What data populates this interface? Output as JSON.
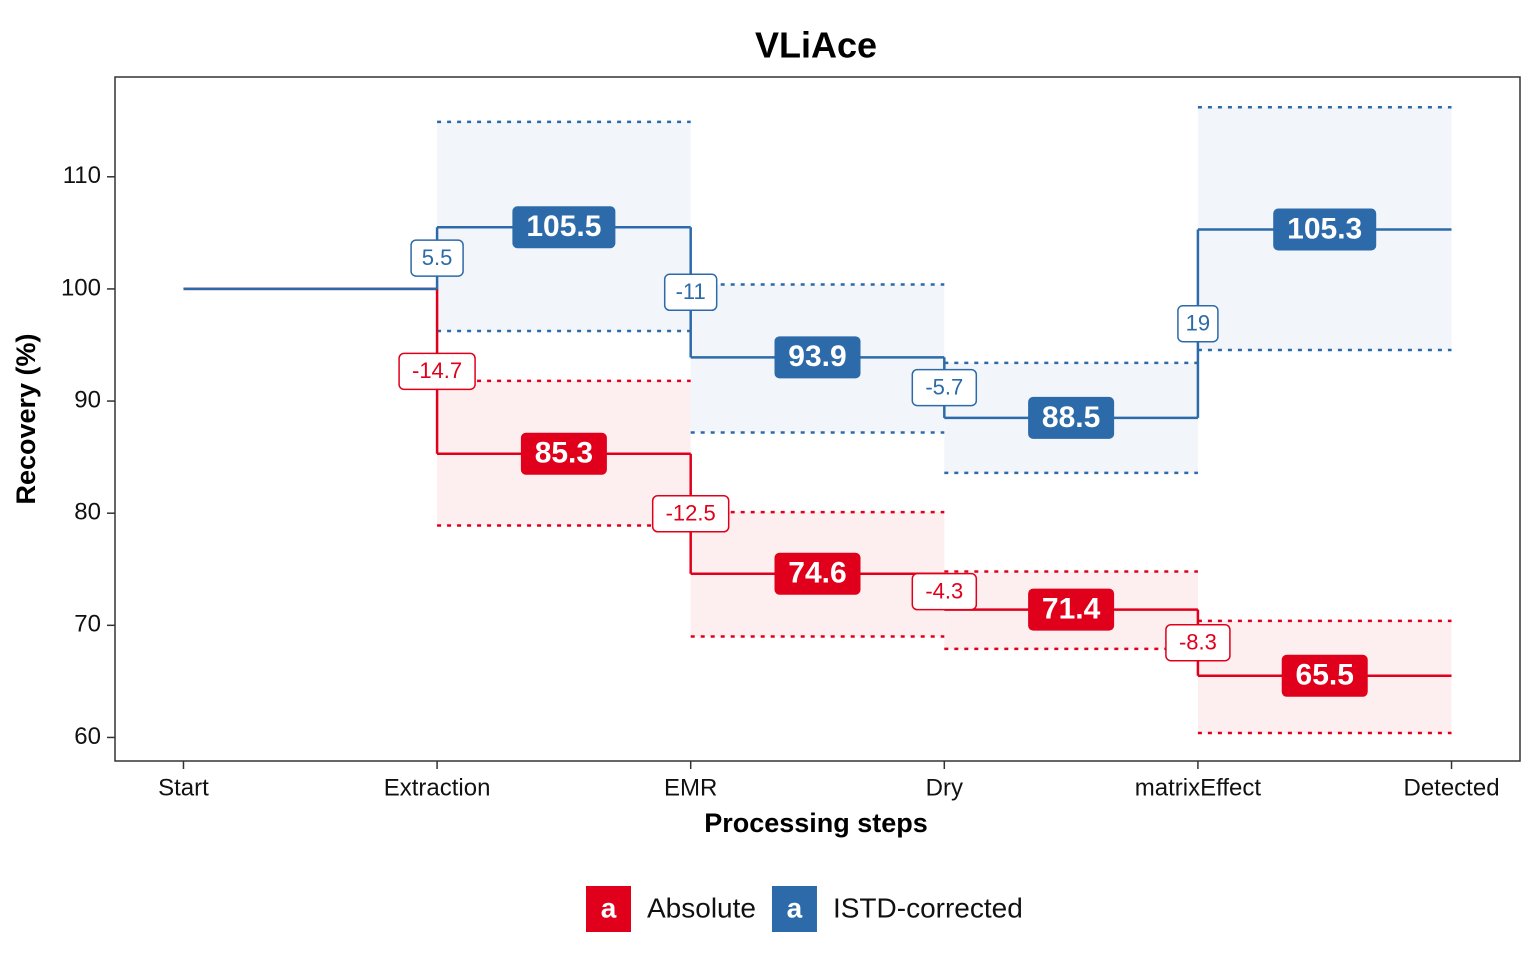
{
  "chart_data": {
    "type": "step",
    "title": "VLiAce",
    "xlabel": "Processing steps",
    "ylabel": "Recovery (%)",
    "categories": [
      "Start",
      "Extraction",
      "EMR",
      "Dry",
      "matrixEffect",
      "Detected"
    ],
    "ylim": [
      57.9,
      118.9
    ],
    "yticks": [
      60,
      70,
      80,
      90,
      100,
      110
    ],
    "legend_glyph": "a",
    "legend_position": "bottom",
    "series": [
      {
        "name": "Absolute",
        "color": "#e0001b",
        "band_color": "#fdeeef",
        "values": [
          100,
          85.3,
          74.6,
          71.4,
          65.5,
          null
        ],
        "changes": [
          null,
          -14.7,
          -12.5,
          -4.3,
          -8.3,
          null
        ],
        "lower": [
          null,
          78.9,
          69.0,
          67.9,
          60.4,
          null
        ],
        "upper": [
          null,
          91.8,
          80.1,
          74.8,
          70.4,
          null
        ]
      },
      {
        "name": "ISTD-corrected",
        "color": "#2c6aa9",
        "band_color": "#f2f6fb",
        "values": [
          100,
          105.5,
          93.9,
          88.5,
          105.3,
          null
        ],
        "changes": [
          null,
          5.5,
          -11,
          -5.7,
          19,
          null
        ],
        "lower": [
          null,
          96.25,
          87.2,
          83.6,
          94.55,
          null
        ],
        "upper": [
          null,
          114.9,
          100.4,
          93.4,
          116.2,
          null
        ]
      }
    ]
  }
}
